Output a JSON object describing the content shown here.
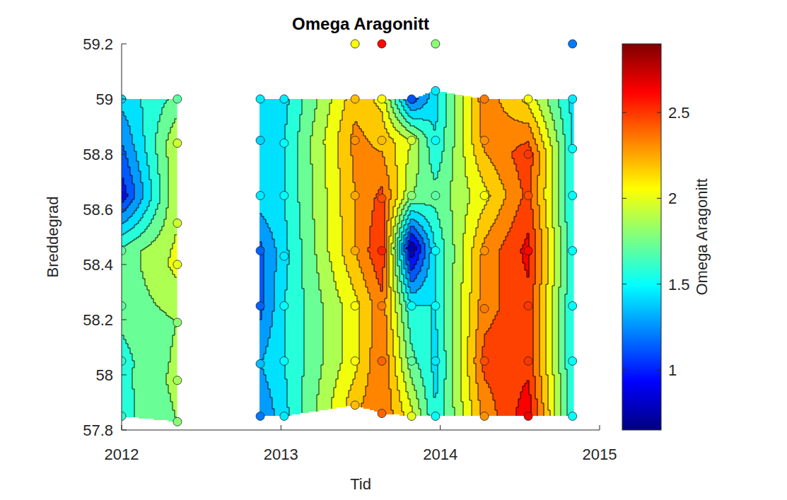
{
  "chart_data": {
    "type": "contour",
    "title": "Omega Aragonitt",
    "x_label": "Tid",
    "y_label": "Breddegrad",
    "xlim": [
      2012,
      2015
    ],
    "xticks": [
      2012,
      2013,
      2014,
      2015
    ],
    "ylim": [
      57.8,
      59.2
    ],
    "yticks": [
      57.8,
      58,
      58.2,
      58.4,
      58.6,
      58.8,
      59,
      59.2
    ],
    "marker": "circle",
    "levels": [
      0.75,
      0.9,
      1.05,
      1.2,
      1.35,
      1.5,
      1.65,
      1.8,
      1.95,
      2.1,
      2.25,
      2.4,
      2.55,
      2.7,
      2.85
    ],
    "colorbar": {
      "label": "Omega Aragonitt",
      "lim": [
        0.65,
        2.9
      ],
      "ticks": [
        1,
        1.5,
        2,
        2.5
      ]
    },
    "sections": [
      {
        "columns": [
          {
            "x": 2012.0,
            "y": [
              59.0,
              58.65,
              58.45,
              58.25,
              58.05,
              57.85
            ],
            "values": [
              1.4,
              0.95,
              1.7,
              1.7,
              1.6,
              1.6
            ]
          },
          {
            "x": 2012.35,
            "y": [
              59.0,
              58.84,
              58.55,
              58.4,
              58.19,
              57.98,
              57.83
            ],
            "values": [
              1.7,
              1.95,
              1.95,
              2.0,
              1.8,
              1.85,
              1.8
            ]
          }
        ]
      },
      {
        "columns": [
          {
            "x": 2012.87,
            "y": [
              59.0,
              58.85,
              58.65,
              58.45,
              58.25,
              58.04,
              57.85
            ],
            "values": [
              1.45,
              1.4,
              1.45,
              1.15,
              1.15,
              1.35,
              1.2
            ]
          },
          {
            "x": 2013.02,
            "y": [
              59.0,
              58.84,
              58.65,
              58.43,
              58.25,
              58.05,
              57.85
            ],
            "values": [
              1.45,
              1.5,
              1.5,
              1.45,
              1.5,
              1.5,
              1.45
            ]
          },
          {
            "x": 2013.465,
            "y": [
              59.0,
              58.85,
              58.65,
              58.45,
              58.25,
              58.05,
              57.89
            ],
            "values": [
              2.2,
              2.3,
              2.25,
              2.25,
              2.05,
              2.05,
              2.2
            ]
          },
          {
            "x": 2013.633,
            "y": [
              59.0,
              58.85,
              58.64,
              58.45,
              58.25,
              58.05,
              57.86
            ],
            "values": [
              2.05,
              2.2,
              2.45,
              2.55,
              2.35,
              2.4,
              2.4
            ]
          },
          {
            "x": 2013.82,
            "y": [
              59.0,
              58.85,
              58.65,
              58.46,
              58.25,
              58.05,
              57.85
            ],
            "values": [
              1.1,
              1.95,
              1.8,
              0.75,
              1.5,
              1.7,
              2.0
            ]
          },
          {
            "x": 2013.97,
            "y": [
              59.03,
              58.85,
              58.65,
              58.45,
              58.25,
              58.05,
              57.85
            ],
            "values": [
              1.45,
              1.5,
              1.7,
              1.5,
              1.5,
              1.45,
              1.5
            ]
          },
          {
            "x": 2014.277,
            "y": [
              59.0,
              58.85,
              58.65,
              58.45,
              58.24,
              58.05,
              57.85
            ],
            "values": [
              2.35,
              2.3,
              2.05,
              2.3,
              2.35,
              2.45,
              2.3
            ]
          },
          {
            "x": 2014.552,
            "y": [
              59.0,
              58.8,
              58.65,
              58.45,
              58.25,
              58.05,
              57.85
            ],
            "values": [
              2.05,
              2.5,
              2.45,
              2.6,
              2.5,
              2.5,
              2.65
            ]
          },
          {
            "x": 2014.83,
            "y": [
              59.0,
              58.82,
              58.65,
              58.45,
              58.25,
              58.05,
              57.85
            ],
            "values": [
              1.45,
              1.5,
              1.5,
              1.5,
              1.5,
              1.5,
              1.5
            ]
          }
        ]
      }
    ],
    "points": {
      "x": [
        2013.465,
        2013.633,
        2013.97,
        2014.83
      ],
      "y": [
        59.2,
        59.2,
        59.2,
        59.2
      ],
      "values": [
        2.05,
        2.6,
        1.8,
        1.2
      ]
    }
  }
}
